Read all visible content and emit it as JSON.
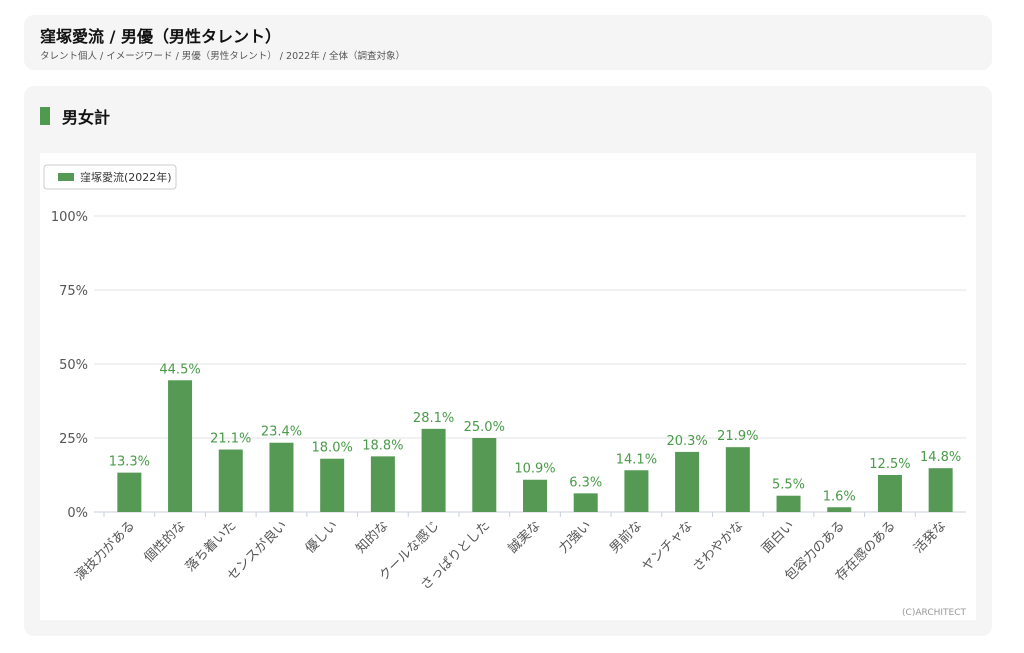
{
  "header": {
    "title": "窪塚愛流 / 男優（男性タレント）",
    "breadcrumb": "タレント個人 / イメージワード / 男優（男性タレント） / 2022年 / 全体（調査対象）"
  },
  "section": {
    "title": "男女計"
  },
  "copyright": "(C)ARCHITECT",
  "chart_data": {
    "type": "bar",
    "categories": [
      "演技力がある",
      "個性的な",
      "落ち着いた",
      "センスが良い",
      "優しい",
      "知的な",
      "クールな感じ",
      "さっぱりとした",
      "誠実な",
      "力強い",
      "男前な",
      "ヤンチャな",
      "さわやかな",
      "面白い",
      "包容力のある",
      "存在感のある",
      "活発な"
    ],
    "series": [
      {
        "name": "窪塚愛流(2022年)",
        "values": [
          13.3,
          44.5,
          21.1,
          23.4,
          18.0,
          18.8,
          28.1,
          25.0,
          10.9,
          6.3,
          14.1,
          20.3,
          21.9,
          5.5,
          1.6,
          12.5,
          14.8
        ],
        "color": "#559955"
      }
    ],
    "data_labels": [
      "13.3%",
      "44.5%",
      "21.1%",
      "23.4%",
      "18.0%",
      "18.8%",
      "28.1%",
      "25.0%",
      "10.9%",
      "6.3%",
      "14.1%",
      "20.3%",
      "21.9%",
      "5.5%",
      "1.6%",
      "12.5%",
      "14.8%"
    ],
    "y_ticks": [
      "0%",
      "25%",
      "50%",
      "75%",
      "100%"
    ],
    "ylim": [
      0,
      100
    ],
    "grid": true,
    "legend": "top-left",
    "label_color": "#4a9a4a"
  }
}
